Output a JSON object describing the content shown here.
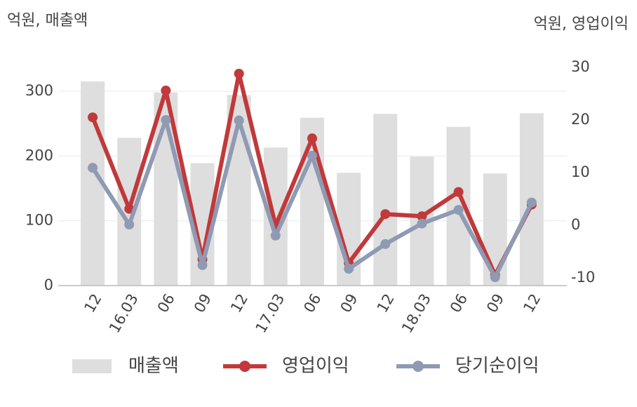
{
  "chart_data": {
    "type": "bar-line",
    "y_unit_label": "억원, 매출액",
    "y2_unit_label": "억원, 영업이익",
    "categories": [
      "12",
      "16.03",
      "06",
      "09",
      "12",
      "17.03",
      "06",
      "09",
      "12",
      "18.03",
      "06",
      "09",
      "12"
    ],
    "ylim": [
      0,
      340
    ],
    "yticks": [
      0,
      100,
      200,
      300
    ],
    "y2lim": [
      -11.5,
      30.4
    ],
    "y2ticks": [
      -10,
      0,
      10,
      20,
      30
    ],
    "grid": true,
    "series": [
      {
        "name": "매출액",
        "type": "bar",
        "color": "#dedede",
        "values": [
          315,
          228,
          298,
          189,
          294,
          213,
          259,
          174,
          265,
          199,
          245,
          173,
          266
        ]
      },
      {
        "name": "영업이익",
        "type": "line",
        "axis": "y2",
        "color": "#c1393b",
        "values": [
          20.5,
          3.1,
          25.6,
          -6.5,
          28.8,
          -0.1,
          16.5,
          -7.2,
          2.1,
          1.7,
          6.3,
          -9.5,
          3.9
        ]
      },
      {
        "name": "당기순이익",
        "type": "line",
        "axis": "y2",
        "color": "#8f9ab3",
        "values": [
          10.9,
          0.1,
          20.0,
          -7.6,
          19.9,
          -2.0,
          13.2,
          -8.3,
          -3.6,
          0.3,
          2.9,
          -9.9,
          4.3
        ]
      }
    ]
  }
}
